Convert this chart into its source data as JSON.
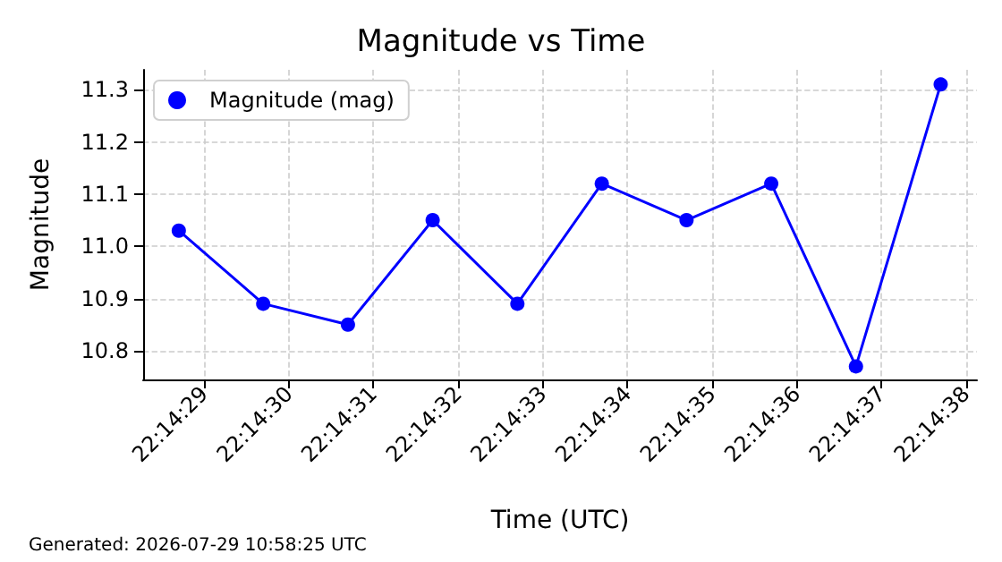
{
  "chart_data": {
    "type": "line",
    "title": "Magnitude vs Time",
    "xlabel": "Time (UTC)",
    "ylabel": "Magnitude",
    "x": [
      22.241306,
      22.241583,
      22.241861,
      22.242139,
      22.242417,
      22.242694,
      22.242972,
      22.24325,
      22.243528,
      22.243806
    ],
    "series": [
      {
        "name": "Magnitude (mag)",
        "color": "#0000ff",
        "values": [
          11.03,
          10.89,
          10.85,
          11.05,
          10.89,
          11.12,
          11.05,
          11.12,
          10.77,
          11.31
        ]
      }
    ],
    "xlim": [
      22.241189,
      22.243925
    ],
    "xticks": [
      {
        "value": 22.241389,
        "label": "22:14:29"
      },
      {
        "value": 22.241667,
        "label": "22:14:30"
      },
      {
        "value": 22.241944,
        "label": "22:14:31"
      },
      {
        "value": 22.242222,
        "label": "22:14:32"
      },
      {
        "value": 22.2425,
        "label": "22:14:33"
      },
      {
        "value": 22.242778,
        "label": "22:14:34"
      },
      {
        "value": 22.243056,
        "label": "22:14:35"
      },
      {
        "value": 22.243333,
        "label": "22:14:36"
      },
      {
        "value": 22.243611,
        "label": "22:14:37"
      },
      {
        "value": 22.243889,
        "label": "22:14:38"
      }
    ],
    "ylim": [
      10.745,
      11.338
    ],
    "yticks": [
      {
        "value": 10.8,
        "label": "10.8"
      },
      {
        "value": 10.9,
        "label": "10.9"
      },
      {
        "value": 11.0,
        "label": "11.0"
      },
      {
        "value": 11.1,
        "label": "11.1"
      },
      {
        "value": 11.2,
        "label": "11.2"
      },
      {
        "value": 11.3,
        "label": "11.3"
      }
    ],
    "annotations": [
      "Generated: 2026-07-29 10:58:25 UTC"
    ],
    "grid": true,
    "legend": "top left",
    "marker": "circle",
    "line_style": "solid"
  }
}
